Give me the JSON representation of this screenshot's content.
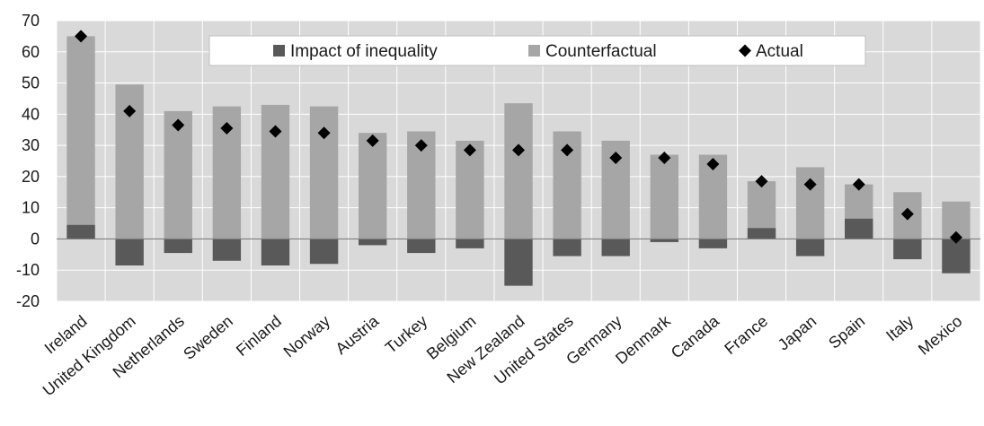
{
  "chart_data": {
    "type": "bar",
    "categories": [
      "Ireland",
      "United Kingdom",
      "Netherlands",
      "Sweden",
      "Finland",
      "Norway",
      "Austria",
      "Turkey",
      "Belgium",
      "New Zealand",
      "United States",
      "Germany",
      "Denmark",
      "Canada",
      "France",
      "Japan",
      "Spain",
      "Italy",
      "Mexico"
    ],
    "series": [
      {
        "name": "Impact of inequality",
        "kind": "bar",
        "color": "#595959",
        "values": [
          4.5,
          -8.5,
          -4.5,
          -7.0,
          -8.5,
          -8.0,
          -2.0,
          -4.5,
          -3.0,
          -15.0,
          -5.5,
          -5.5,
          -1.0,
          -3.0,
          3.5,
          -5.5,
          6.5,
          -6.5,
          -11.0
        ]
      },
      {
        "name": "Counterfactual",
        "kind": "bar",
        "color": "#a6a6a6",
        "values": [
          65,
          49.5,
          41,
          42.5,
          43,
          42.5,
          34,
          34.5,
          31.5,
          43.5,
          34.5,
          31.5,
          27,
          27,
          18.5,
          23,
          17.5,
          15,
          12
        ]
      },
      {
        "name": "Actual",
        "kind": "marker",
        "color": "#000000",
        "values": [
          65,
          41,
          36.5,
          35.5,
          34.5,
          34,
          31.5,
          30,
          28.5,
          28.5,
          28.5,
          26,
          26,
          24,
          18.5,
          17.5,
          17.5,
          8,
          0.5
        ]
      }
    ],
    "yticks": [
      "70",
      "60",
      "50",
      "40",
      "30",
      "20",
      "10",
      "0",
      "-10",
      "-20"
    ],
    "ylim": [
      -20,
      70
    ],
    "grid": true,
    "legend_position": "top-center",
    "plot_background": "#d9d9d9"
  }
}
